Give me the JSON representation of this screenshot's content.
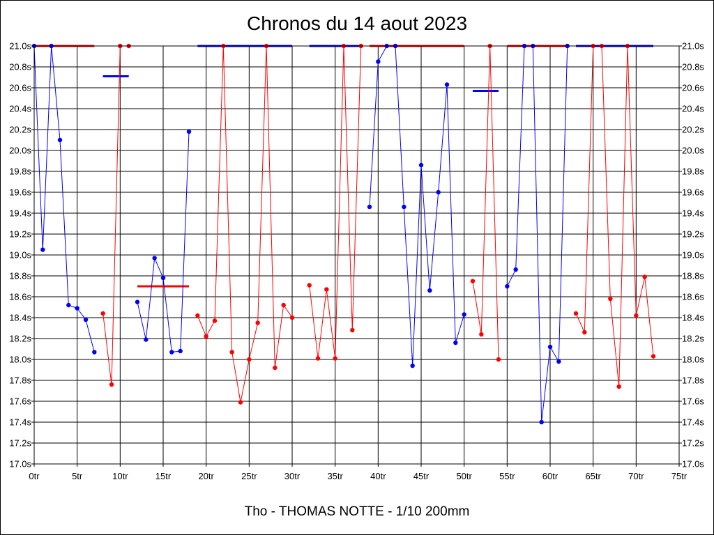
{
  "chart_data": {
    "type": "line",
    "title": "Chronos du 14 aout 2023",
    "subtitle": "Tho - THOMAS NOTTE - 1/10 200mm",
    "xlim": [
      0,
      75
    ],
    "ylim": [
      17.0,
      21.0
    ],
    "x_ticks": [
      0,
      5,
      10,
      15,
      20,
      25,
      30,
      35,
      40,
      45,
      50,
      55,
      60,
      65,
      70,
      75
    ],
    "x_tick_labels": [
      "0tr",
      "5tr",
      "10tr",
      "15tr",
      "20tr",
      "25tr",
      "30tr",
      "35tr",
      "40tr",
      "45tr",
      "50tr",
      "55tr",
      "60tr",
      "65tr",
      "70tr",
      "75tr"
    ],
    "y_ticks": [
      17.0,
      17.2,
      17.4,
      17.6,
      17.8,
      18.0,
      18.2,
      18.4,
      18.6,
      18.8,
      19.0,
      19.2,
      19.4,
      19.6,
      19.8,
      20.0,
      20.2,
      20.4,
      20.6,
      20.8,
      21.0
    ],
    "y_tick_labels": [
      "17.0s",
      "17.2s",
      "17.4s",
      "17.6s",
      "17.8s",
      "18.0s",
      "18.2s",
      "18.4s",
      "18.6s",
      "18.8s",
      "19.0s",
      "19.2s",
      "19.4s",
      "19.6s",
      "19.8s",
      "20.0s",
      "20.2s",
      "20.4s",
      "20.6s",
      "20.8s",
      "21.0s"
    ],
    "grid": true,
    "colors": {
      "blue": "#0000ff",
      "red": "#ff0000"
    },
    "series": [
      {
        "color": "blue",
        "points": [
          [
            0,
            21.0
          ],
          [
            0.5,
            20.0
          ],
          [
            1,
            19.05
          ],
          [
            1.5,
            20.0
          ],
          [
            2,
            21.0
          ],
          [
            3,
            20.1
          ],
          [
            4,
            18.52
          ],
          [
            5,
            18.49
          ],
          [
            6,
            18.38
          ],
          [
            7,
            18.07
          ]
        ]
      },
      {
        "color": "red",
        "points": [
          [
            8,
            18.44
          ],
          [
            9,
            17.76
          ],
          [
            10,
            21.0
          ],
          [
            11,
            21.0
          ]
        ]
      },
      {
        "color": "blue",
        "points": [
          [
            12,
            18.55
          ],
          [
            13,
            18.19
          ],
          [
            14,
            18.97
          ],
          [
            15,
            18.78
          ],
          [
            16,
            18.07
          ],
          [
            17,
            18.08
          ],
          [
            18,
            20.18
          ]
        ]
      },
      {
        "color": "red",
        "points": [
          [
            19,
            18.42
          ],
          [
            20,
            18.22
          ],
          [
            21,
            18.37
          ],
          [
            22,
            21.0
          ],
          [
            23,
            18.07
          ],
          [
            24,
            17.59
          ],
          [
            25,
            18.0
          ],
          [
            26,
            18.35
          ],
          [
            27,
            21.0
          ],
          [
            28,
            17.92
          ],
          [
            29,
            18.52
          ],
          [
            30,
            18.4
          ]
        ]
      },
      {
        "color": "red",
        "points": [
          [
            32,
            18.71
          ],
          [
            33,
            18.01
          ],
          [
            34,
            18.67
          ],
          [
            35,
            18.01
          ],
          [
            36,
            21.0
          ],
          [
            37,
            18.28
          ],
          [
            38,
            21.0
          ]
        ]
      },
      {
        "color": "blue",
        "points": [
          [
            39,
            19.46
          ],
          [
            40,
            20.85
          ],
          [
            41,
            21.0
          ],
          [
            42,
            21.0
          ],
          [
            43,
            19.46
          ],
          [
            44,
            17.94
          ],
          [
            45,
            19.86
          ],
          [
            46,
            18.66
          ],
          [
            47,
            19.6
          ],
          [
            48,
            20.63
          ],
          [
            49,
            18.16
          ],
          [
            50,
            18.43
          ]
        ]
      },
      {
        "color": "red",
        "points": [
          [
            51,
            18.75
          ],
          [
            52,
            18.24
          ],
          [
            53,
            21.0
          ],
          [
            54,
            18.0
          ]
        ]
      },
      {
        "color": "blue",
        "points": [
          [
            55,
            18.7
          ],
          [
            56,
            18.86
          ],
          [
            57,
            21.0
          ],
          [
            58,
            21.0
          ],
          [
            59,
            17.4
          ],
          [
            60,
            18.12
          ],
          [
            61,
            17.98
          ],
          [
            62,
            21.0
          ]
        ]
      },
      {
        "color": "red",
        "points": [
          [
            63,
            18.44
          ],
          [
            64,
            18.26
          ],
          [
            65,
            21.0
          ],
          [
            66,
            21.0
          ],
          [
            67,
            18.58
          ],
          [
            68,
            17.74
          ],
          [
            69,
            21.0
          ],
          [
            70,
            18.42
          ],
          [
            71,
            18.79
          ],
          [
            72,
            18.03
          ]
        ]
      }
    ],
    "reference_lines": [
      {
        "color": "red",
        "x": [
          0,
          7
        ],
        "y": 21.0
      },
      {
        "color": "blue",
        "x": [
          8,
          11
        ],
        "y": 20.71
      },
      {
        "color": "red",
        "x": [
          12,
          18
        ],
        "y": 18.7
      },
      {
        "color": "blue",
        "x": [
          19,
          30
        ],
        "y": 21.0
      },
      {
        "color": "blue",
        "x": [
          32,
          38
        ],
        "y": 21.0
      },
      {
        "color": "red",
        "x": [
          39,
          50
        ],
        "y": 21.0
      },
      {
        "color": "blue",
        "x": [
          51,
          54
        ],
        "y": 20.57
      },
      {
        "color": "red",
        "x": [
          55,
          62
        ],
        "y": 21.0
      },
      {
        "color": "blue",
        "x": [
          63,
          72
        ],
        "y": 21.0
      }
    ]
  }
}
